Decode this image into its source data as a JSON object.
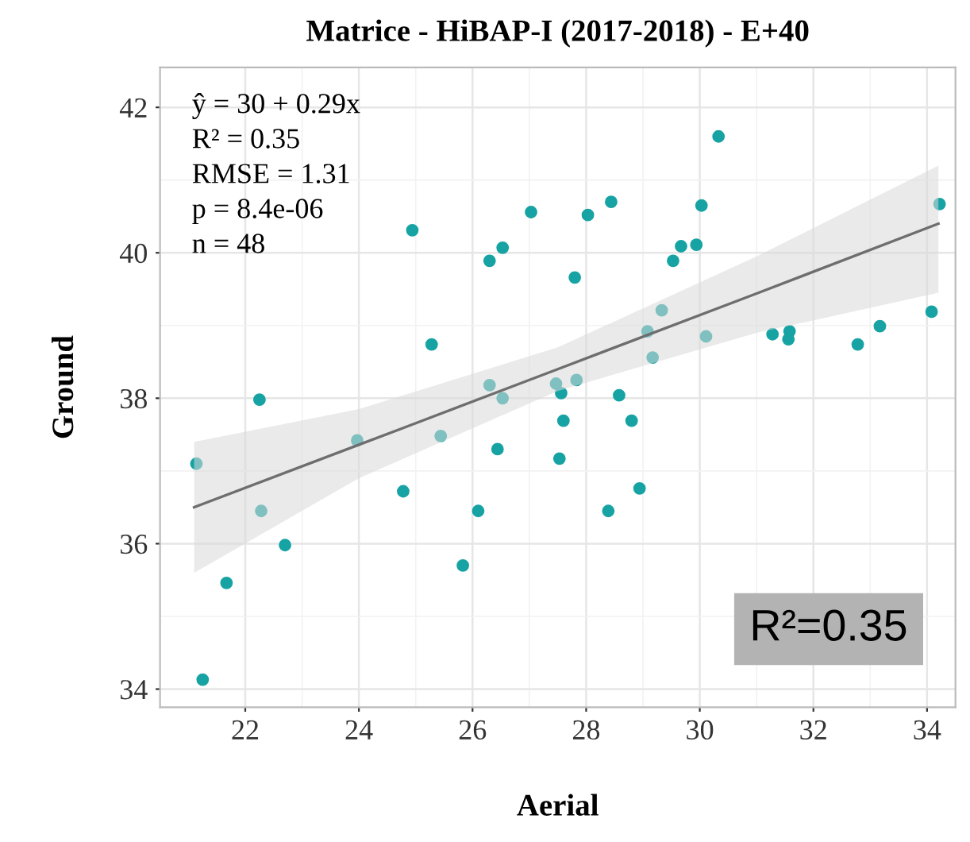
{
  "chart_data": {
    "type": "scatter",
    "title": "Matrice - HiBAP-I (2017-2018) - E+40",
    "xlabel": "Aerial",
    "ylabel": "Ground",
    "xlim": [
      20.5,
      34.5
    ],
    "ylim": [
      33.75,
      42.55
    ],
    "xticks": [
      22,
      24,
      26,
      28,
      30,
      32,
      34
    ],
    "yticks": [
      34,
      36,
      38,
      40,
      42
    ],
    "grid": true,
    "series": [
      {
        "marker": "circle",
        "color": "#17a3a3",
        "x": [
          21.14,
          21.25,
          21.67,
          22.25,
          22.28,
          22.7,
          23.97,
          24.78,
          24.94,
          25.28,
          25.44,
          25.83,
          26.1,
          26.3,
          26.53,
          27.03,
          26.3,
          26.44,
          26.53,
          26.44,
          27.53,
          27.6,
          27.47,
          27.56,
          27.83,
          28.58,
          28.8,
          28.94,
          28.39,
          27.8,
          28.03,
          28.44,
          29.08,
          29.17,
          29.33,
          29.53,
          29.67,
          29.94,
          30.03,
          30.11,
          30.33,
          31.28,
          31.58,
          31.56,
          32.78,
          33.17,
          34.08,
          34.22
        ],
        "values": [
          37.1,
          34.13,
          35.46,
          37.98,
          36.45,
          35.98,
          37.42,
          36.72,
          40.31,
          38.74,
          37.48,
          35.7,
          36.45,
          39.89,
          40.07,
          40.56,
          38.18,
          null,
          38.0,
          37.3,
          37.17,
          37.69,
          38.2,
          38.07,
          38.25,
          38.04,
          37.69,
          36.76,
          36.45,
          39.66,
          40.52,
          40.7,
          38.92,
          38.56,
          39.21,
          39.89,
          40.09,
          40.11,
          40.65,
          38.85,
          41.6,
          38.88,
          38.92,
          38.81,
          38.74,
          38.99,
          39.19,
          40.67
        ]
      },
      {
        "type": "line",
        "marker": "none",
        "color": "#6e6e6e",
        "x": [
          21.1,
          24,
          27.5,
          31,
          34.2
        ],
        "values": [
          36.5,
          37.36,
          38.4,
          39.44,
          40.4
        ],
        "lower": [
          35.6,
          36.9,
          38.1,
          38.9,
          39.45
        ],
        "upper": [
          37.4,
          37.85,
          38.7,
          39.95,
          41.2
        ]
      }
    ],
    "annotations": [
      "ŷ = 30 + 0.29x\nR² = 0.35\nRMSE = 1.31\np = 8.4e-06\nn = 48",
      "R²=0.35"
    ]
  }
}
